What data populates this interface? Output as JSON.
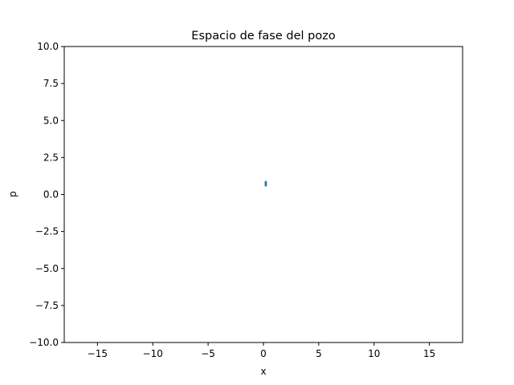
{
  "chart_data": {
    "type": "scatter",
    "title": "Espacio de fase del pozo",
    "xlabel": "x",
    "ylabel": "p",
    "xlim": [
      -18,
      18
    ],
    "ylim": [
      -10,
      10
    ],
    "xticks": [
      -15,
      -10,
      -5,
      0,
      5,
      10,
      15
    ],
    "xtick_labels": [
      "−15",
      "−10",
      "−5",
      "0",
      "5",
      "10",
      "15"
    ],
    "yticks": [
      -10,
      -7.5,
      -5,
      -2.5,
      0,
      2.5,
      5,
      7.5,
      10
    ],
    "ytick_labels": [
      "−10.0",
      "−7.5",
      "−5.0",
      "−2.5",
      "0.0",
      "2.5",
      "5.0",
      "7.5",
      "10.0"
    ],
    "grid": false,
    "series": [
      {
        "color": "#1f77b4",
        "points": [
          {
            "x": 0.2,
            "y": 0.62
          },
          {
            "x": 0.2,
            "y": 0.66
          },
          {
            "x": 0.2,
            "y": 0.7
          },
          {
            "x": 0.2,
            "y": 0.74
          },
          {
            "x": 0.2,
            "y": 0.78
          },
          {
            "x": 0.2,
            "y": 0.82
          },
          {
            "x": 0.2,
            "y": 0.86
          }
        ]
      }
    ]
  }
}
